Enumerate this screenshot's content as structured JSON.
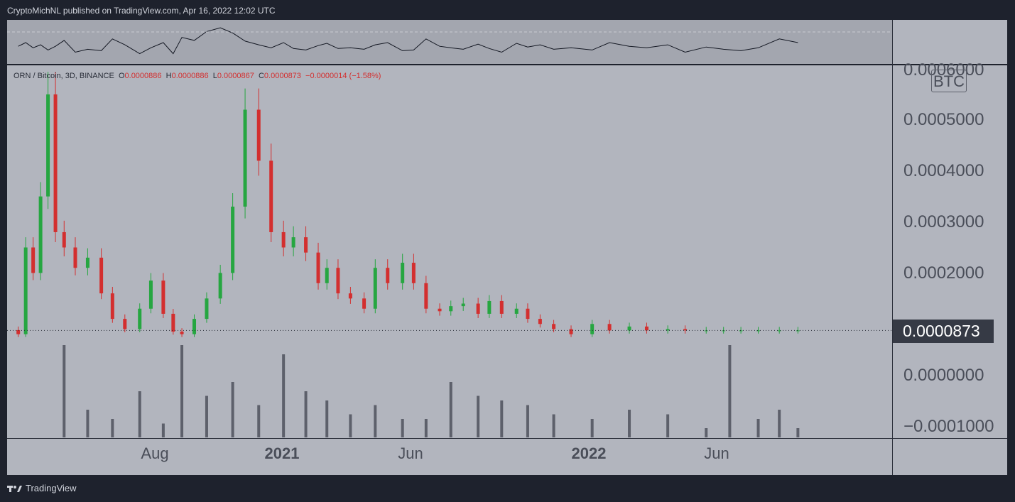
{
  "header": {
    "published": "CryptoMichNL published on TradingView.com, Apr 16, 2022 12:02 UTC"
  },
  "legend": {
    "symbol": "ORN / Bitcoin, 3D, BINANCE",
    "o_label": "O",
    "o": "0.0000886",
    "h_label": "H",
    "h": "0.0000886",
    "l_label": "L",
    "l": "0.0000867",
    "c_label": "C",
    "c": "0.0000873",
    "change": "−0.0000014 (−1.58%)"
  },
  "price_axis": {
    "ticks": [
      "0.0006000",
      "0.0005000",
      "0.0004000",
      "0.0003000",
      "0.0002000",
      "0.0000000",
      "−0.0001000"
    ],
    "current_price": "0.0000873",
    "currency": "BTC"
  },
  "time_axis": {
    "ticks": [
      {
        "label": "Aug",
        "bold": false
      },
      {
        "label": "2021",
        "bold": true
      },
      {
        "label": "Jun",
        "bold": false
      },
      {
        "label": "2022",
        "bold": true
      },
      {
        "label": "Jun",
        "bold": false
      }
    ]
  },
  "footer": {
    "brand": "TradingView"
  },
  "colors": {
    "up": "#26a641",
    "down": "#d32f2f",
    "volume": "#5d606b",
    "background": "#b2b5be"
  },
  "chart_data": {
    "type": "candlestick",
    "y_range": [
      -0.0001,
      0.0006
    ],
    "x_range": [
      "2020-07-17",
      "2022-07-01"
    ],
    "current_price": 8.73e-05,
    "price": {
      "dates": [
        "2020-07-26",
        "2020-08-01",
        "2020-08-07",
        "2020-08-13",
        "2020-08-19",
        "2020-08-25",
        "2020-09-01",
        "2020-09-10",
        "2020-09-20",
        "2020-10-01",
        "2020-10-10",
        "2020-10-20",
        "2020-11-01",
        "2020-11-10",
        "2020-11-20",
        "2020-11-28",
        "2020-12-05",
        "2020-12-15",
        "2020-12-25",
        "2021-01-05",
        "2021-01-15",
        "2021-01-25",
        "2021-02-05",
        "2021-02-15",
        "2021-02-25",
        "2021-03-05",
        "2021-03-15",
        "2021-03-25",
        "2021-04-01",
        "2021-04-10",
        "2021-04-20",
        "2021-05-01",
        "2021-05-10",
        "2021-05-20",
        "2021-06-01",
        "2021-06-10",
        "2021-06-20",
        "2021-07-01",
        "2021-07-10",
        "2021-07-20",
        "2021-08-01",
        "2021-08-10",
        "2021-08-20",
        "2021-09-01",
        "2021-09-10",
        "2021-09-20",
        "2021-10-01",
        "2021-10-15",
        "2021-11-01",
        "2021-11-15",
        "2021-12-01",
        "2021-12-15",
        "2022-01-01",
        "2022-01-15",
        "2022-02-01",
        "2022-02-15",
        "2022-03-01",
        "2022-03-15",
        "2022-04-01",
        "2022-04-16"
      ],
      "close": [
        8e-05,
        0.00025,
        0.0002,
        0.00035,
        0.00055,
        0.00028,
        0.00025,
        0.00021,
        0.00023,
        0.00016,
        0.00011,
        9e-05,
        0.00013,
        0.000185,
        0.00012,
        8.5e-05,
        8e-05,
        0.00011,
        0.00015,
        0.0002,
        0.00033,
        0.00052,
        0.00042,
        0.00028,
        0.00025,
        0.00027,
        0.00024,
        0.00018,
        0.00021,
        0.00016,
        0.00015,
        0.00013,
        0.00021,
        0.00018,
        0.00022,
        0.00018,
        0.00013,
        0.000125,
        0.000135,
        0.00014,
        0.00012,
        0.000145,
        0.00012,
        0.00013,
        0.00011,
        0.0001,
        9e-05,
        8e-05,
        0.0001,
        8.73e-05,
        9.5e-05,
        8.73e-05,
        9e-05,
        8.73e-05,
        8.73e-05,
        8.73e-05,
        8.73e-05,
        8.73e-05,
        8.73e-05,
        8.73e-05
      ],
      "rsi": [
        50,
        55,
        48,
        52,
        45,
        50,
        58,
        42,
        46,
        44,
        60,
        52,
        40,
        48,
        55,
        40,
        62,
        58,
        70,
        75,
        68,
        57,
        52,
        48,
        55,
        47,
        45,
        51,
        54,
        47,
        48,
        46,
        52,
        55,
        44,
        45,
        60,
        50,
        48,
        46,
        53,
        47,
        42,
        54,
        49,
        52,
        46,
        48,
        45,
        55,
        50,
        48,
        52,
        42,
        49,
        46,
        44,
        48,
        60,
        55
      ]
    },
    "volume": {
      "dates": [
        "2020-09-01",
        "2020-09-20",
        "2020-10-10",
        "2020-11-01",
        "2020-11-20",
        "2020-12-05",
        "2020-12-25",
        "2021-01-15",
        "2021-02-05",
        "2021-02-25",
        "2021-03-15",
        "2021-04-01",
        "2021-04-20",
        "2021-05-10",
        "2021-06-01",
        "2021-06-20",
        "2021-07-10",
        "2021-08-01",
        "2021-08-20",
        "2021-09-10",
        "2021-10-01",
        "2021-11-01",
        "2021-12-01",
        "2022-01-01",
        "2022-02-01",
        "2022-02-20",
        "2022-03-15",
        "2022-04-01",
        "2022-04-16"
      ],
      "values": [
        100,
        30,
        20,
        50,
        15,
        100,
        45,
        60,
        35,
        90,
        50,
        40,
        25,
        35,
        20,
        20,
        60,
        45,
        40,
        35,
        25,
        20,
        30,
        25,
        10,
        100,
        20,
        30,
        10
      ]
    }
  }
}
